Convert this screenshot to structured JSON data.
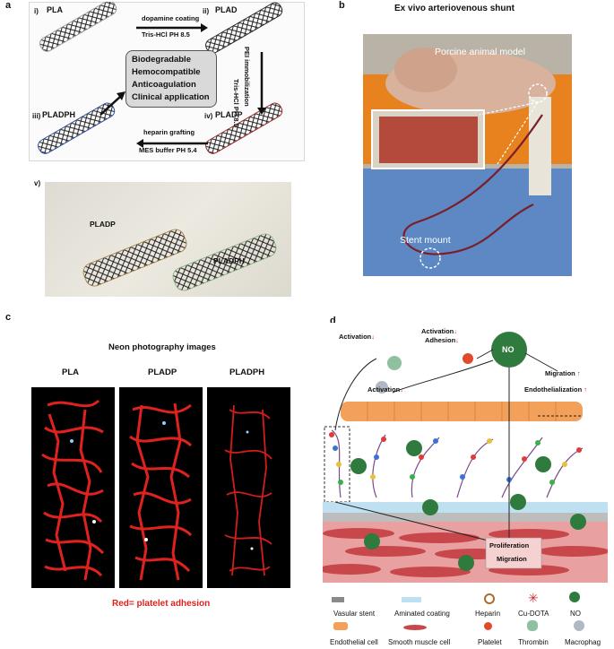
{
  "panel_a": {
    "letter": "a",
    "i_label": "i)",
    "pla": "PLA",
    "ii_label": "ii)",
    "plad": "PLAD",
    "iii_label": "iii)",
    "pladph": "PLADPH",
    "iv_label": "iv)",
    "pladp": "PLADP",
    "step1_top": "dopamine coating",
    "step1_bottom": "Tris-HCl PH 8.5",
    "step2_line1": "Tris-HCl PH 8.5",
    "step2_line2": "PEI immobilization",
    "step3_top": "heparin grafting",
    "step3_bottom": "MES buffer PH 5.4",
    "box_lines": [
      "Biodegradable",
      "Hemocompatible",
      "Anticoagulation",
      "Clinical application"
    ]
  },
  "panel_a_v": {
    "label": "v)",
    "pladp": "PLADP",
    "pladph": "PLADPH"
  },
  "panel_b": {
    "letter": "b",
    "title": "Ex vivo arteriovenous shunt",
    "animal_label": "Porcine animal model",
    "stent_label": "Stent mount"
  },
  "panel_c": {
    "letter": "c",
    "title": "Neon photography images",
    "col1": "PLA",
    "col2": "PLADP",
    "col3": "PLADPH",
    "caption": "Red= platelet adhesion"
  },
  "panel_d": {
    "letter": "d",
    "activation_1": "Activation",
    "activation_2": "Activation",
    "activation_3": "Activation",
    "adhesion": "Adhesion",
    "migration_top": "Migration",
    "endothelialization": "Endothelialization",
    "no": "NO",
    "proliferation": "Proliferation",
    "migration_bottom": "Migration",
    "legend_row1": [
      "Vasular stent",
      "Aminated coating",
      "Heparin",
      "Cu-DOTA",
      "NO"
    ],
    "legend_row2": [
      "Endothelial cell",
      "Smooth muscle cell",
      "Platelet",
      "Thrombin",
      "Macrophag"
    ]
  },
  "colors": {
    "red_arrow": "#d7262b",
    "caption_red": "#e02020",
    "stent_gray": "#9a9a9a",
    "stent_black": "#2b2b2b",
    "stent_blue": "#2f4f9e",
    "stent_red": "#a02a2a",
    "no_green": "#2f7a3d",
    "endo_orange": "#f3a05a"
  }
}
